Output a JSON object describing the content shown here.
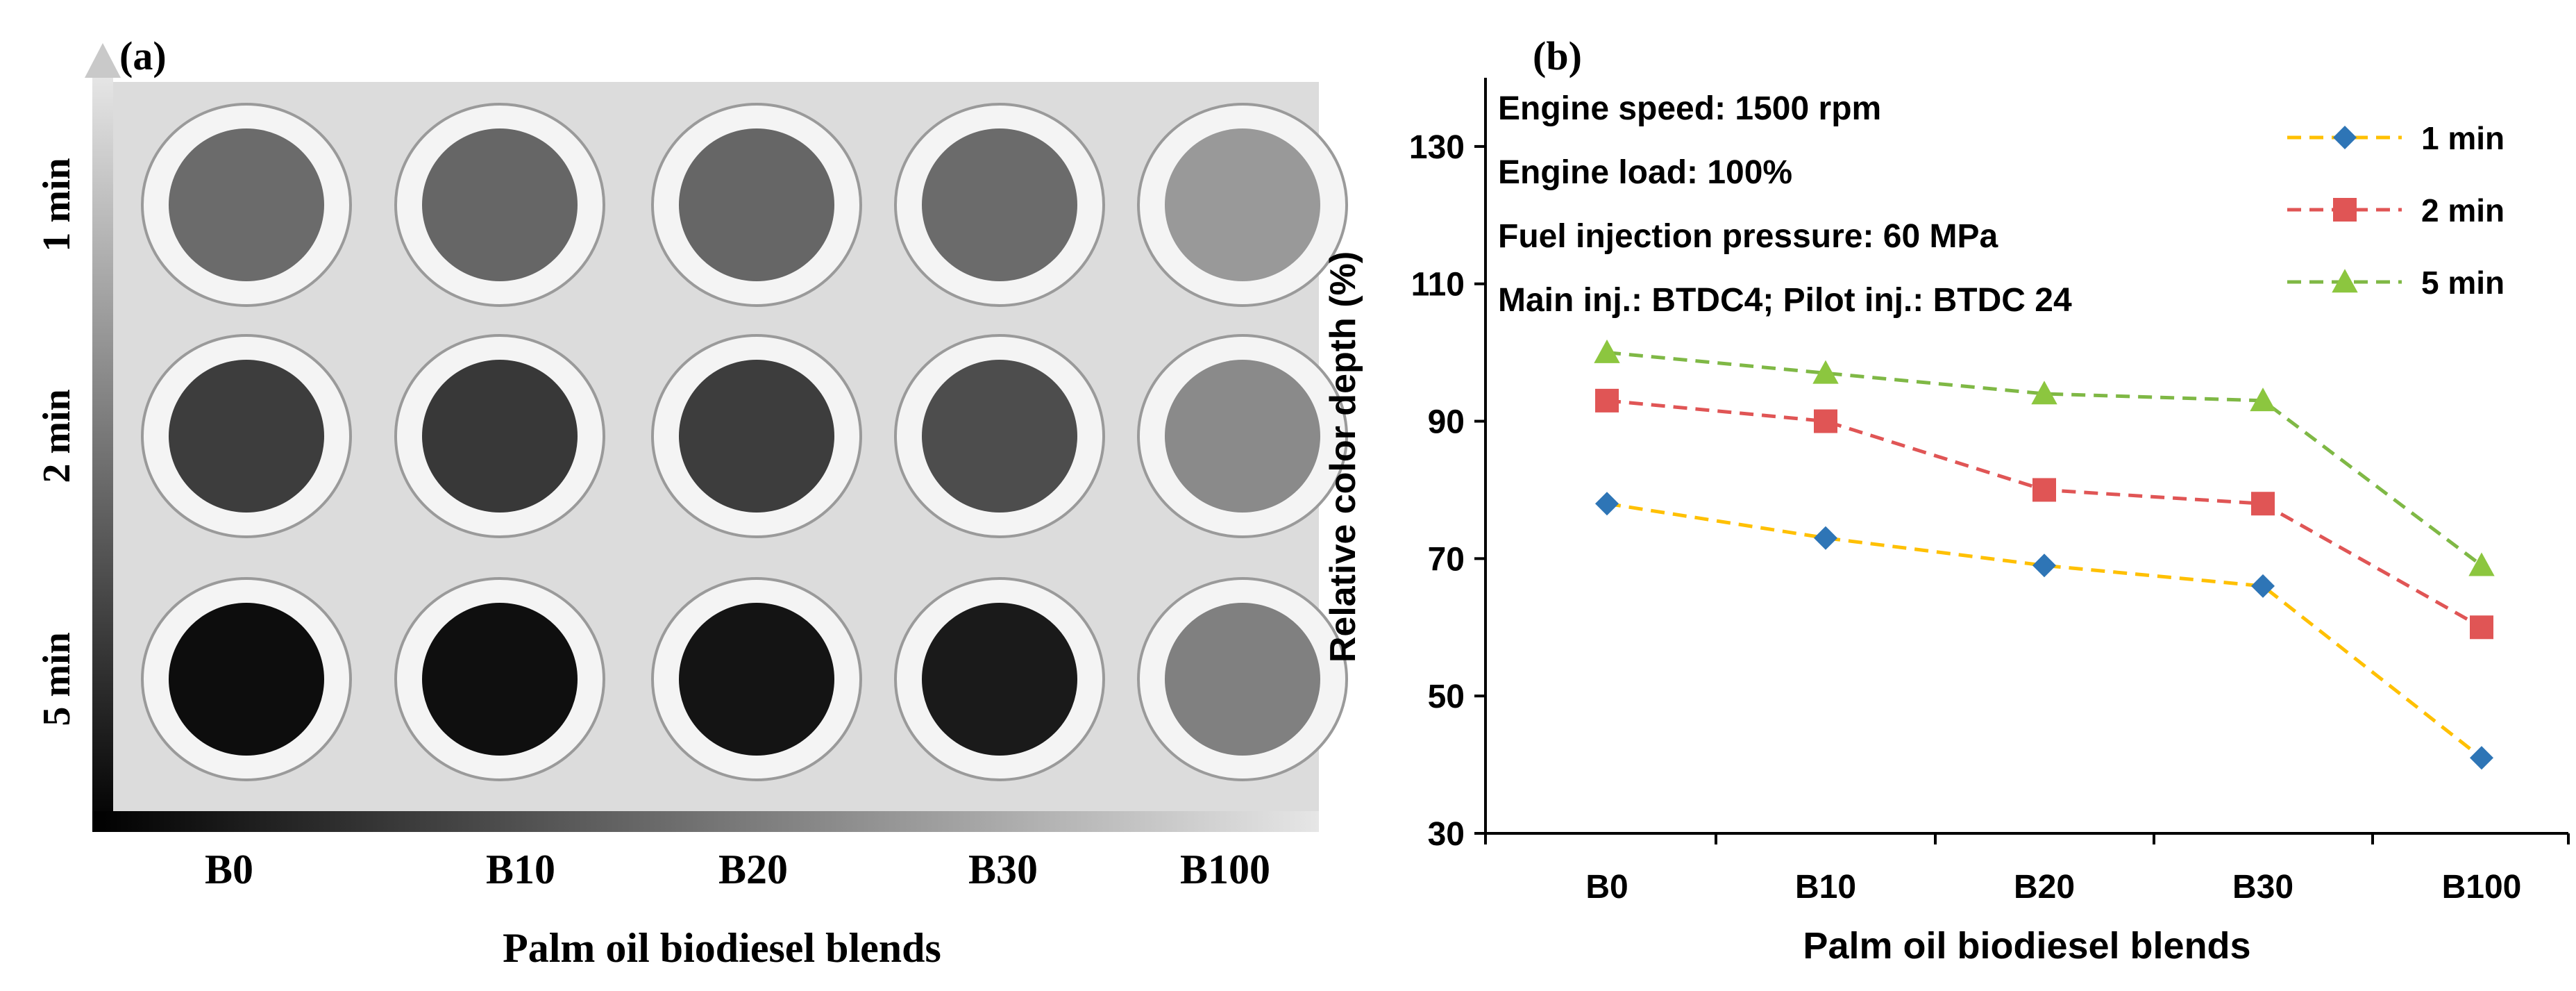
{
  "panel_a": {
    "label": "(a)",
    "row_labels": [
      "1 min",
      "2 min",
      "5 min"
    ],
    "column_labels": [
      "B0",
      "B10",
      "B20",
      "B30",
      "B100"
    ],
    "xlabel": "Palm oil biodiesel blends",
    "sample_gray_levels": [
      [
        0.42,
        0.4,
        0.4,
        0.42,
        0.6
      ],
      [
        0.24,
        0.22,
        0.24,
        0.3,
        0.54
      ],
      [
        0.05,
        0.06,
        0.08,
        0.1,
        0.5
      ]
    ]
  },
  "panel_b": {
    "label": "(b)",
    "notes": [
      "Engine speed: 1500 rpm",
      "Engine load: 100%",
      "Fuel injection pressure: 60 MPa",
      "Main inj.: BTDC4; Pilot inj.: BTDC 24"
    ]
  },
  "chart_data": {
    "type": "line",
    "xlabel": "Palm oil biodiesel blends",
    "ylabel": "Relative color depth (%)",
    "categories": [
      "B0",
      "B10",
      "B20",
      "B30",
      "B100"
    ],
    "ylim": [
      30,
      140
    ],
    "yticks": [
      30,
      50,
      70,
      90,
      110,
      130
    ],
    "grid": false,
    "legend_position": "top-right",
    "series": [
      {
        "name": "1 min",
        "color": "#ffc000",
        "marker": "diamond",
        "marker_color": "#2e75b6",
        "values": [
          78,
          73,
          69,
          66,
          41
        ]
      },
      {
        "name": "2 min",
        "color": "#e05555",
        "marker": "square",
        "marker_color": "#e05555",
        "values": [
          93,
          90,
          80,
          78,
          60
        ]
      },
      {
        "name": "5 min",
        "color": "#7fb845",
        "marker": "triangle",
        "marker_color": "#8cc63f",
        "values": [
          100,
          97,
          94,
          93,
          69
        ]
      }
    ]
  }
}
